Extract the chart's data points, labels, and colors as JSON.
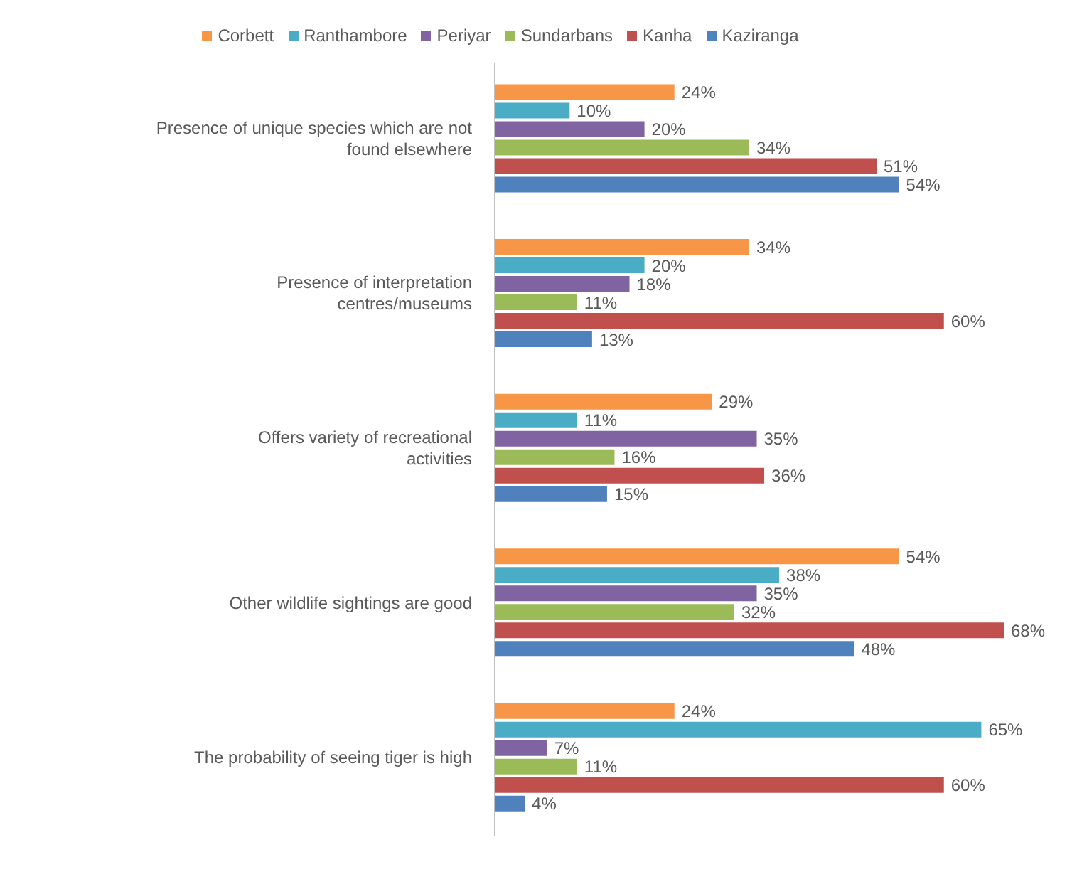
{
  "chart_data": {
    "type": "bar",
    "orientation": "horizontal",
    "categories": [
      "Presence of unique species which are not found elsewhere",
      "Presence of interpretation centres/museums",
      "Offers variety of recreational activities",
      "Other wildlife sightings are good",
      "The probability of seeing tiger is high"
    ],
    "series": [
      {
        "name": "Corbett",
        "color": "#f79646",
        "values": [
          24,
          34,
          29,
          54,
          24
        ],
        "value_labels": [
          "24%",
          "34%",
          "29%",
          "54%",
          "24%"
        ]
      },
      {
        "name": "Ranthambore",
        "color": "#4bacc6",
        "values": [
          10,
          20,
          11,
          38,
          65
        ],
        "value_labels": [
          "10%",
          "20%",
          "11%",
          "38%",
          "65%"
        ]
      },
      {
        "name": "Periyar",
        "color": "#8064a2",
        "values": [
          20,
          18,
          35,
          35,
          7
        ],
        "value_labels": [
          "20%",
          "18%",
          "35%",
          "35%",
          "7%"
        ]
      },
      {
        "name": "Sundarbans",
        "color": "#9bbb59",
        "values": [
          34,
          11,
          16,
          32,
          11
        ],
        "value_labels": [
          "34%",
          "11%",
          "16%",
          "32%",
          "11%"
        ]
      },
      {
        "name": "Kanha",
        "color": "#c0504d",
        "values": [
          51,
          60,
          36,
          68,
          60
        ],
        "value_labels": [
          "51%",
          "60%",
          "36%",
          "68%",
          "60%"
        ]
      },
      {
        "name": "Kaziranga",
        "color": "#4f81bd",
        "values": [
          54,
          13,
          15,
          48,
          4
        ],
        "value_labels": [
          "54%",
          "13%",
          "15%",
          "48%",
          "4%"
        ]
      }
    ],
    "legend": "top",
    "tick_labels": "y"
  }
}
